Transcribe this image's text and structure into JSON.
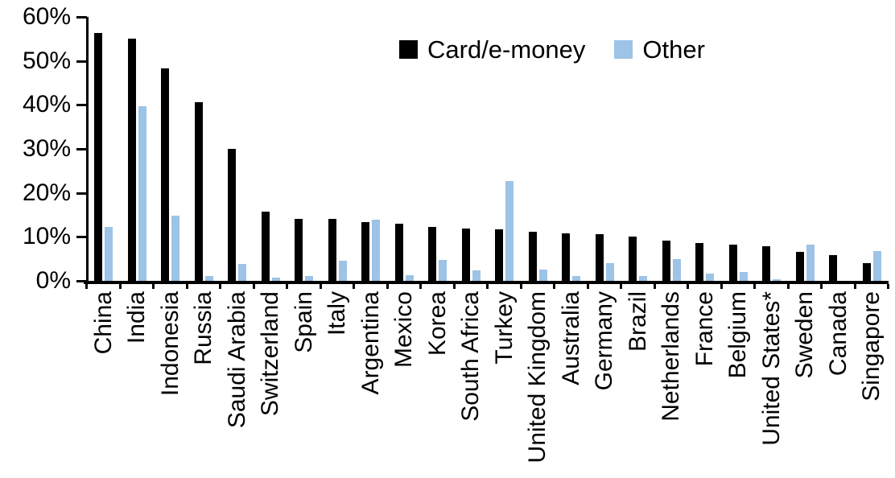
{
  "chart_data": {
    "type": "bar",
    "title": "",
    "xlabel": "",
    "ylabel": "",
    "ylim": [
      0,
      60
    ],
    "ytick_step": 10,
    "ytick_labels": [
      "0%",
      "10%",
      "20%",
      "30%",
      "40%",
      "50%",
      "60%"
    ],
    "grid": false,
    "legend_position": "top-center",
    "categories": [
      "China",
      "India",
      "Indonesia",
      "Russia",
      "Saudi Arabia",
      "Switzerland",
      "Spain",
      "Italy",
      "Argentina",
      "Mexico",
      "Korea",
      "South Africa",
      "Turkey",
      "United Kingdom",
      "Australia",
      "Germany",
      "Brazil",
      "Netherlands",
      "France",
      "Belgium",
      "United States*",
      "Sweden",
      "Canada",
      "Singapore"
    ],
    "series": [
      {
        "name": "Card/e-money",
        "color": "#000000",
        "values": [
          56.3,
          55.1,
          48.3,
          40.6,
          30.0,
          15.7,
          14.1,
          14.1,
          13.4,
          13.0,
          12.3,
          11.9,
          11.7,
          11.1,
          10.8,
          10.6,
          10.1,
          9.1,
          8.6,
          8.2,
          7.9,
          6.6,
          5.9,
          4.0
        ]
      },
      {
        "name": "Other",
        "color": "#9DC3E6",
        "values": [
          12.3,
          39.7,
          14.8,
          1.1,
          3.8,
          0.7,
          1.1,
          4.6,
          13.9,
          1.3,
          4.8,
          2.4,
          22.7,
          2.6,
          1.1,
          4.0,
          1.1,
          4.9,
          1.6,
          2.0,
          0.3,
          8.2,
          0.0,
          6.8
        ]
      }
    ]
  }
}
